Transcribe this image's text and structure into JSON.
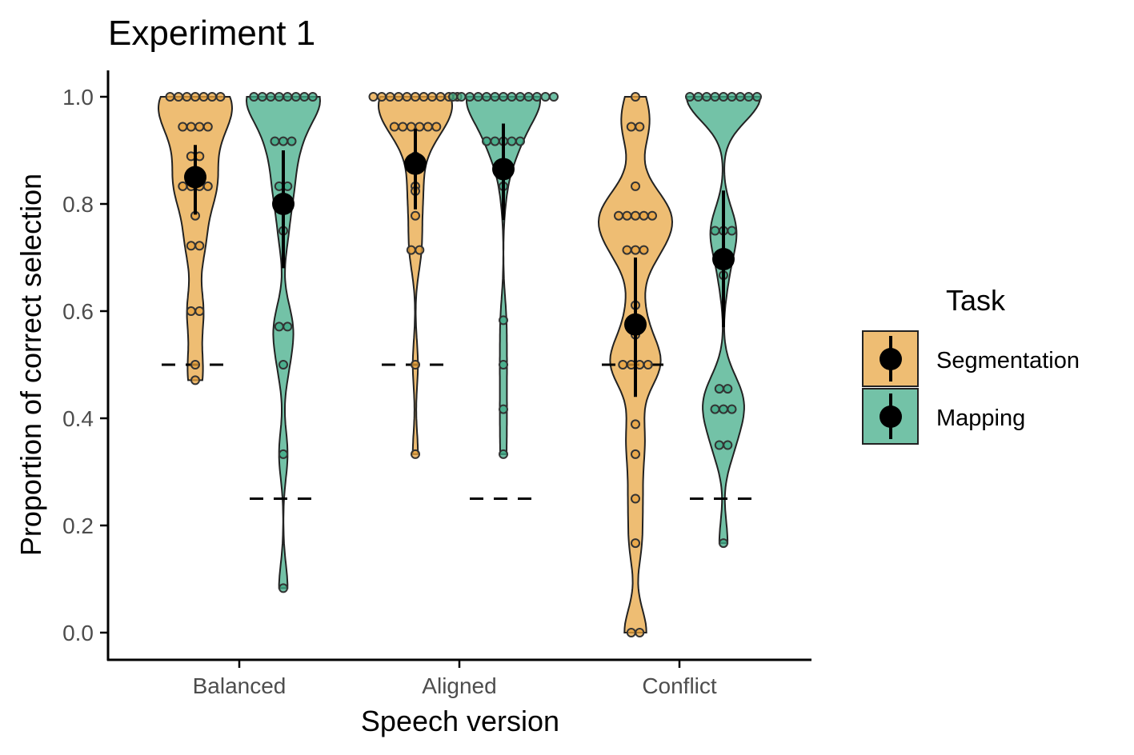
{
  "chart_data": {
    "type": "violin",
    "title": "Experiment 1",
    "xlabel": "Speech version",
    "ylabel": "Proportion of correct selection",
    "ylim": [
      0,
      1
    ],
    "yticks": [
      "0.0",
      "0.2",
      "0.4",
      "0.6",
      "0.8",
      "1.0"
    ],
    "categories": [
      "Balanced",
      "Aligned",
      "Conflict"
    ],
    "grid": false,
    "legend": {
      "title": "Task",
      "placement": "right"
    },
    "series": [
      {
        "name": "Segmentation",
        "color": "#E8A33D",
        "chance": 0.5,
        "means": [
          0.85,
          0.875,
          0.575
        ],
        "ci": [
          [
            0.78,
            0.91
          ],
          [
            0.79,
            0.94
          ],
          [
            0.44,
            0.7
          ]
        ],
        "points": [
          [
            1,
            1,
            1,
            1,
            1,
            1,
            1,
            0.944,
            0.944,
            0.944,
            0.944,
            0.889,
            0.889,
            0.833,
            0.833,
            0.833,
            0.833,
            0.778,
            0.722,
            0.722,
            0.6,
            0.6,
            0.5,
            0.471
          ],
          [
            1,
            1,
            1,
            1,
            1,
            1,
            1,
            1,
            1,
            1,
            1,
            0.944,
            0.944,
            0.944,
            0.944,
            0.944,
            0.944,
            0.889,
            0.833,
            0.824,
            0.778,
            0.714,
            0.714,
            0.5,
            0.333
          ],
          [
            1,
            0.944,
            0.944,
            0.833,
            0.778,
            0.778,
            0.778,
            0.778,
            0.778,
            0.714,
            0.714,
            0.714,
            0.611,
            0.556,
            0.5,
            0.5,
            0.5,
            0.5,
            0.389,
            0.333,
            0.25,
            0.167,
            0,
            0
          ]
        ]
      },
      {
        "name": "Mapping",
        "color": "#3DAA85",
        "chance": 0.25,
        "means": [
          0.8,
          0.865,
          0.697
        ],
        "ci": [
          [
            0.68,
            0.9
          ],
          [
            0.77,
            0.95
          ],
          [
            0.57,
            0.825
          ]
        ],
        "points": [
          [
            1,
            1,
            1,
            1,
            1,
            1,
            1,
            1,
            0.917,
            0.917,
            0.917,
            0.833,
            0.833,
            0.75,
            0.571,
            0.571,
            0.5,
            0.333,
            0.083
          ],
          [
            1,
            1,
            1,
            1,
            1,
            1,
            1,
            1,
            1,
            1,
            1,
            1,
            1,
            0.917,
            0.917,
            0.917,
            0.917,
            0.917,
            0.833,
            0.583,
            0.5,
            0.417,
            0.333
          ],
          [
            1,
            1,
            1,
            1,
            1,
            1,
            1,
            1,
            1,
            0.75,
            0.75,
            0.75,
            0.667,
            0.455,
            0.455,
            0.417,
            0.417,
            0.417,
            0.35,
            0.35,
            0.167
          ]
        ]
      }
    ]
  }
}
